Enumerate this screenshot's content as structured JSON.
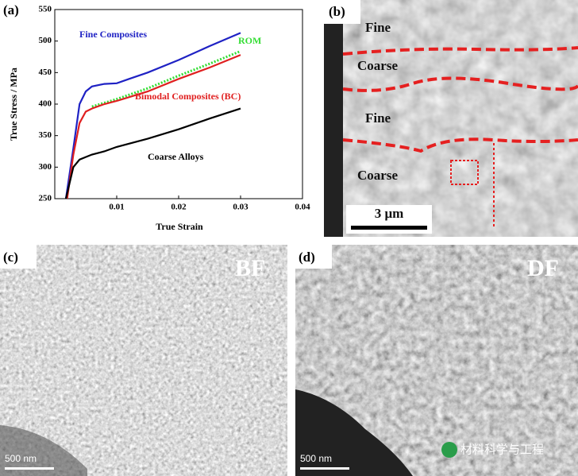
{
  "chart_data": {
    "type": "line",
    "panel_label": "(a)",
    "x_label": "True Strain",
    "y_label": "True Stress / MPa",
    "xlim": [
      0,
      0.04
    ],
    "xticks": [
      0.01,
      0.02,
      0.03,
      0.04
    ],
    "ylim": [
      250,
      550
    ],
    "yticks": [
      250,
      300,
      350,
      400,
      450,
      500,
      550
    ],
    "series": [
      {
        "name": "Fine Composites",
        "color": "#1f22c4",
        "x": [
          0.0018,
          0.003,
          0.004,
          0.005,
          0.006,
          0.008,
          0.01,
          0.012,
          0.015,
          0.02,
          0.025,
          0.03
        ],
        "values": [
          250,
          330,
          400,
          420,
          428,
          432,
          433,
          440,
          450,
          470,
          492,
          513
        ]
      },
      {
        "name": "ROM",
        "color": "#33dd33",
        "x": [
          0.006,
          0.01,
          0.015,
          0.02,
          0.025,
          0.03
        ],
        "values": [
          396,
          408,
          425,
          445,
          464,
          484
        ]
      },
      {
        "name": "Bimodal Composites (BC)",
        "color": "#e02020",
        "x": [
          0.002,
          0.003,
          0.004,
          0.005,
          0.006,
          0.008,
          0.01,
          0.015,
          0.02,
          0.025,
          0.03
        ],
        "values": [
          250,
          320,
          370,
          388,
          393,
          400,
          405,
          420,
          440,
          458,
          478
        ]
      },
      {
        "name": "Coarse Alloys",
        "color": "#000000",
        "x": [
          0.0018,
          0.003,
          0.004,
          0.005,
          0.006,
          0.008,
          0.01,
          0.015,
          0.02,
          0.025,
          0.03
        ],
        "values": [
          250,
          300,
          312,
          316,
          320,
          325,
          332,
          345,
          360,
          377,
          393
        ]
      }
    ]
  },
  "panel_b": {
    "label": "(b)",
    "regions": [
      "Fine",
      "Coarse",
      "Fine",
      "Coarse"
    ],
    "scale_bar": "3 μm"
  },
  "panel_c": {
    "label": "(c)",
    "mode": "BF",
    "scale_bar": "500 nm"
  },
  "panel_d": {
    "label": "(d)",
    "mode": "DF",
    "scale_bar": "500 nm"
  },
  "watermark": "材料科学与工程"
}
